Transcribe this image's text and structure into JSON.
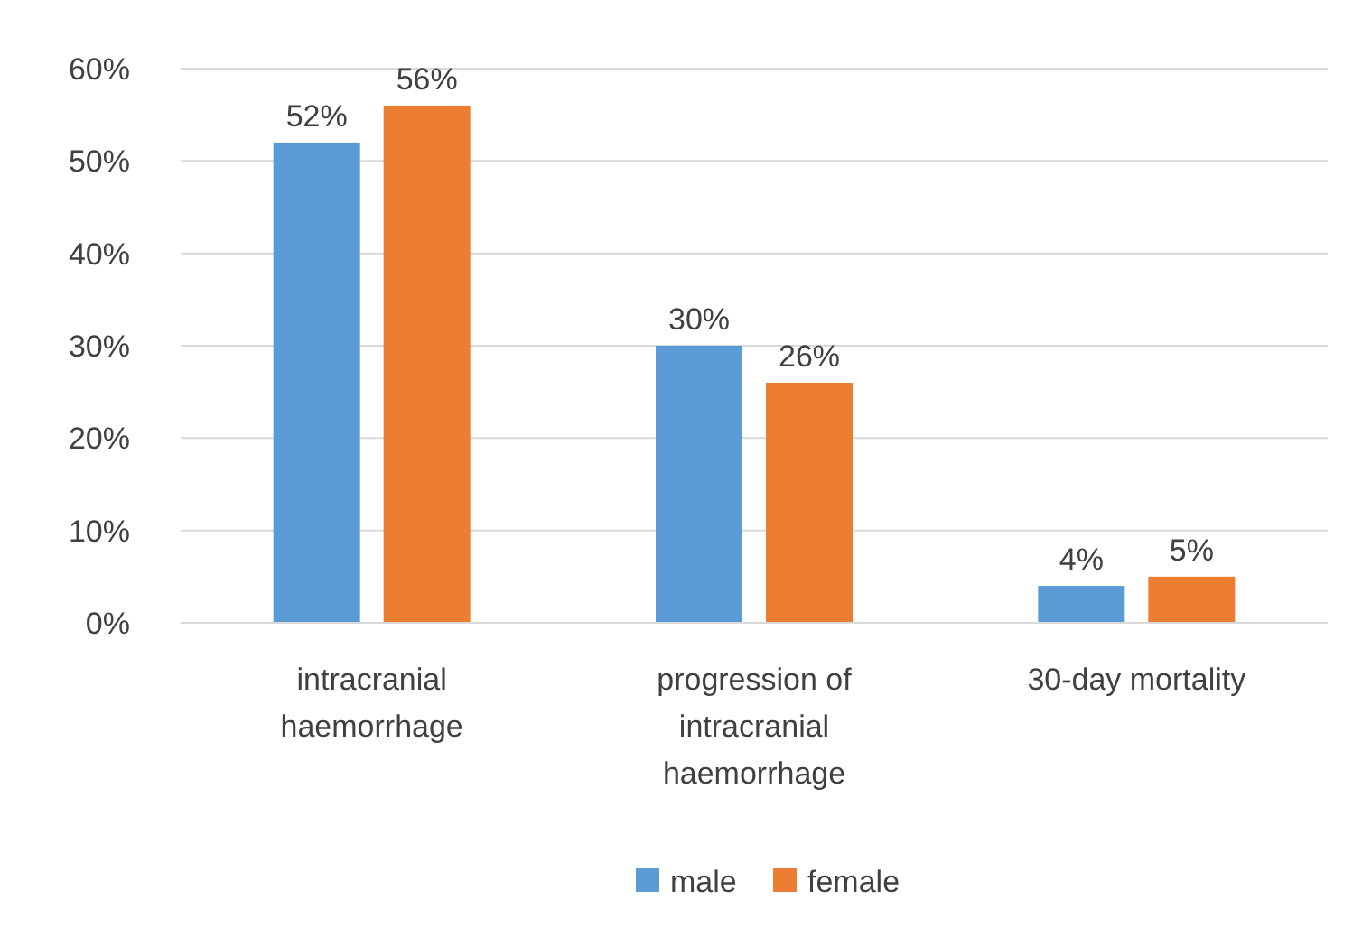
{
  "chart_data": {
    "type": "bar",
    "categories": [
      "intracranial haemorrhage",
      "progression of intracranial haemorrhage",
      "30-day mortality"
    ],
    "series": [
      {
        "name": "male",
        "color": "#5b9bd5",
        "values": [
          52,
          30,
          4
        ],
        "value_labels": [
          "52%",
          "30%",
          "4%"
        ]
      },
      {
        "name": "female",
        "color": "#ed7d31",
        "values": [
          56,
          26,
          5
        ],
        "value_labels": [
          "56%",
          "26%",
          "5%"
        ]
      }
    ],
    "ylim": [
      0,
      60
    ],
    "yticks": [
      {
        "value": 0,
        "label": "0%"
      },
      {
        "value": 10,
        "label": "10%"
      },
      {
        "value": 20,
        "label": "20%"
      },
      {
        "value": 30,
        "label": "30%"
      },
      {
        "value": 40,
        "label": "40%"
      },
      {
        "value": 50,
        "label": "50%"
      },
      {
        "value": 60,
        "label": "60%"
      }
    ],
    "grid": "y",
    "legend": "bottom"
  }
}
